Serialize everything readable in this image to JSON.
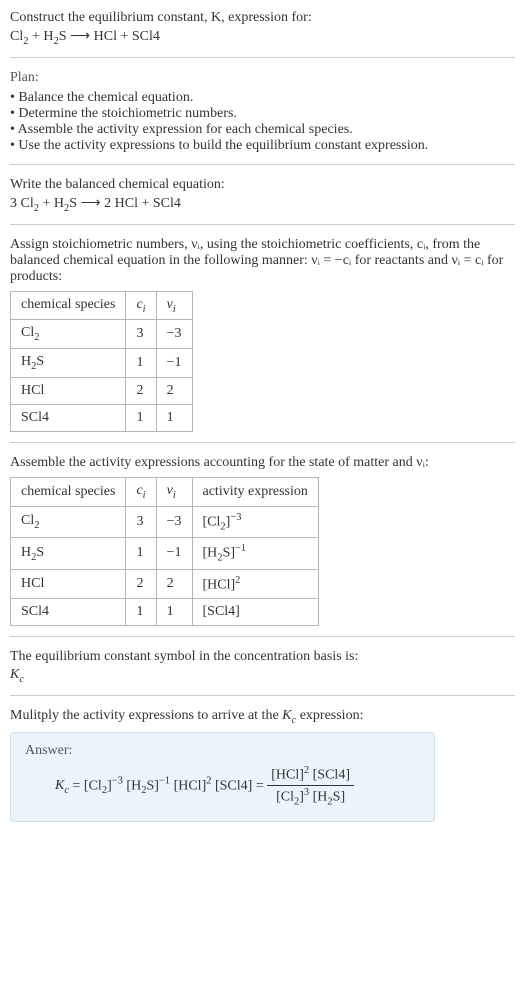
{
  "intro": {
    "line1": "Construct the equilibrium constant, K, expression for:",
    "reaction_lhs": "Cl₂ + H₂S",
    "arrow": "⟶",
    "reaction_rhs": "HCl + SCl4"
  },
  "plan": {
    "heading": "Plan:",
    "steps": [
      "Balance the chemical equation.",
      "Determine the stoichiometric numbers.",
      "Assemble the activity expression for each chemical species.",
      "Use the activity expressions to build the equilibrium constant expression."
    ]
  },
  "balanced": {
    "heading": "Write the balanced chemical equation:",
    "lhs": "3 Cl₂ + H₂S",
    "arrow": "⟶",
    "rhs": "2 HCl + SCl4"
  },
  "stoich_intro": "Assign stoichiometric numbers, νᵢ, using the stoichiometric coefficients, cᵢ, from the balanced chemical equation in the following manner: νᵢ = −cᵢ for reactants and νᵢ = cᵢ for products:",
  "stoich_table": {
    "headers": [
      "chemical species",
      "cᵢ",
      "νᵢ"
    ],
    "rows": [
      [
        "Cl₂",
        "3",
        "−3"
      ],
      [
        "H₂S",
        "1",
        "−1"
      ],
      [
        "HCl",
        "2",
        "2"
      ],
      [
        "SCl4",
        "1",
        "1"
      ]
    ]
  },
  "activity_intro": "Assemble the activity expressions accounting for the state of matter and νᵢ:",
  "activity_table": {
    "headers": [
      "chemical species",
      "cᵢ",
      "νᵢ",
      "activity expression"
    ],
    "rows": [
      {
        "species": "Cl₂",
        "c": "3",
        "v": "−3",
        "expr_base": "[Cl₂]",
        "expr_exp": "−3"
      },
      {
        "species": "H₂S",
        "c": "1",
        "v": "−1",
        "expr_base": "[H₂S]",
        "expr_exp": "−1"
      },
      {
        "species": "HCl",
        "c": "2",
        "v": "2",
        "expr_base": "[HCl]",
        "expr_exp": "2"
      },
      {
        "species": "SCl4",
        "c": "1",
        "v": "1",
        "expr_base": "[SCl4]",
        "expr_exp": ""
      }
    ]
  },
  "kc_symbol": {
    "heading": "The equilibrium constant symbol in the concentration basis is:",
    "symbol": "K𝒸"
  },
  "multiply": "Mulitply the activity expressions to arrive at the K𝒸 expression:",
  "answer": {
    "label": "Answer:",
    "lhs": "K𝒸 = ",
    "flat": "[Cl₂]⁻³ [H₂S]⁻¹ [HCl]² [SCl4] = ",
    "num": "[HCl]² [SCl4]",
    "den": "[Cl₂]³ [H₂S]"
  },
  "style": {
    "text_color": "#333333",
    "muted_color": "#555555",
    "rule_color": "#cccccc",
    "table_border": "#b6b6b6",
    "answer_bg": "#eaf4fb",
    "answer_border": "#c9dfef",
    "font_size_pt": 10.5
  }
}
